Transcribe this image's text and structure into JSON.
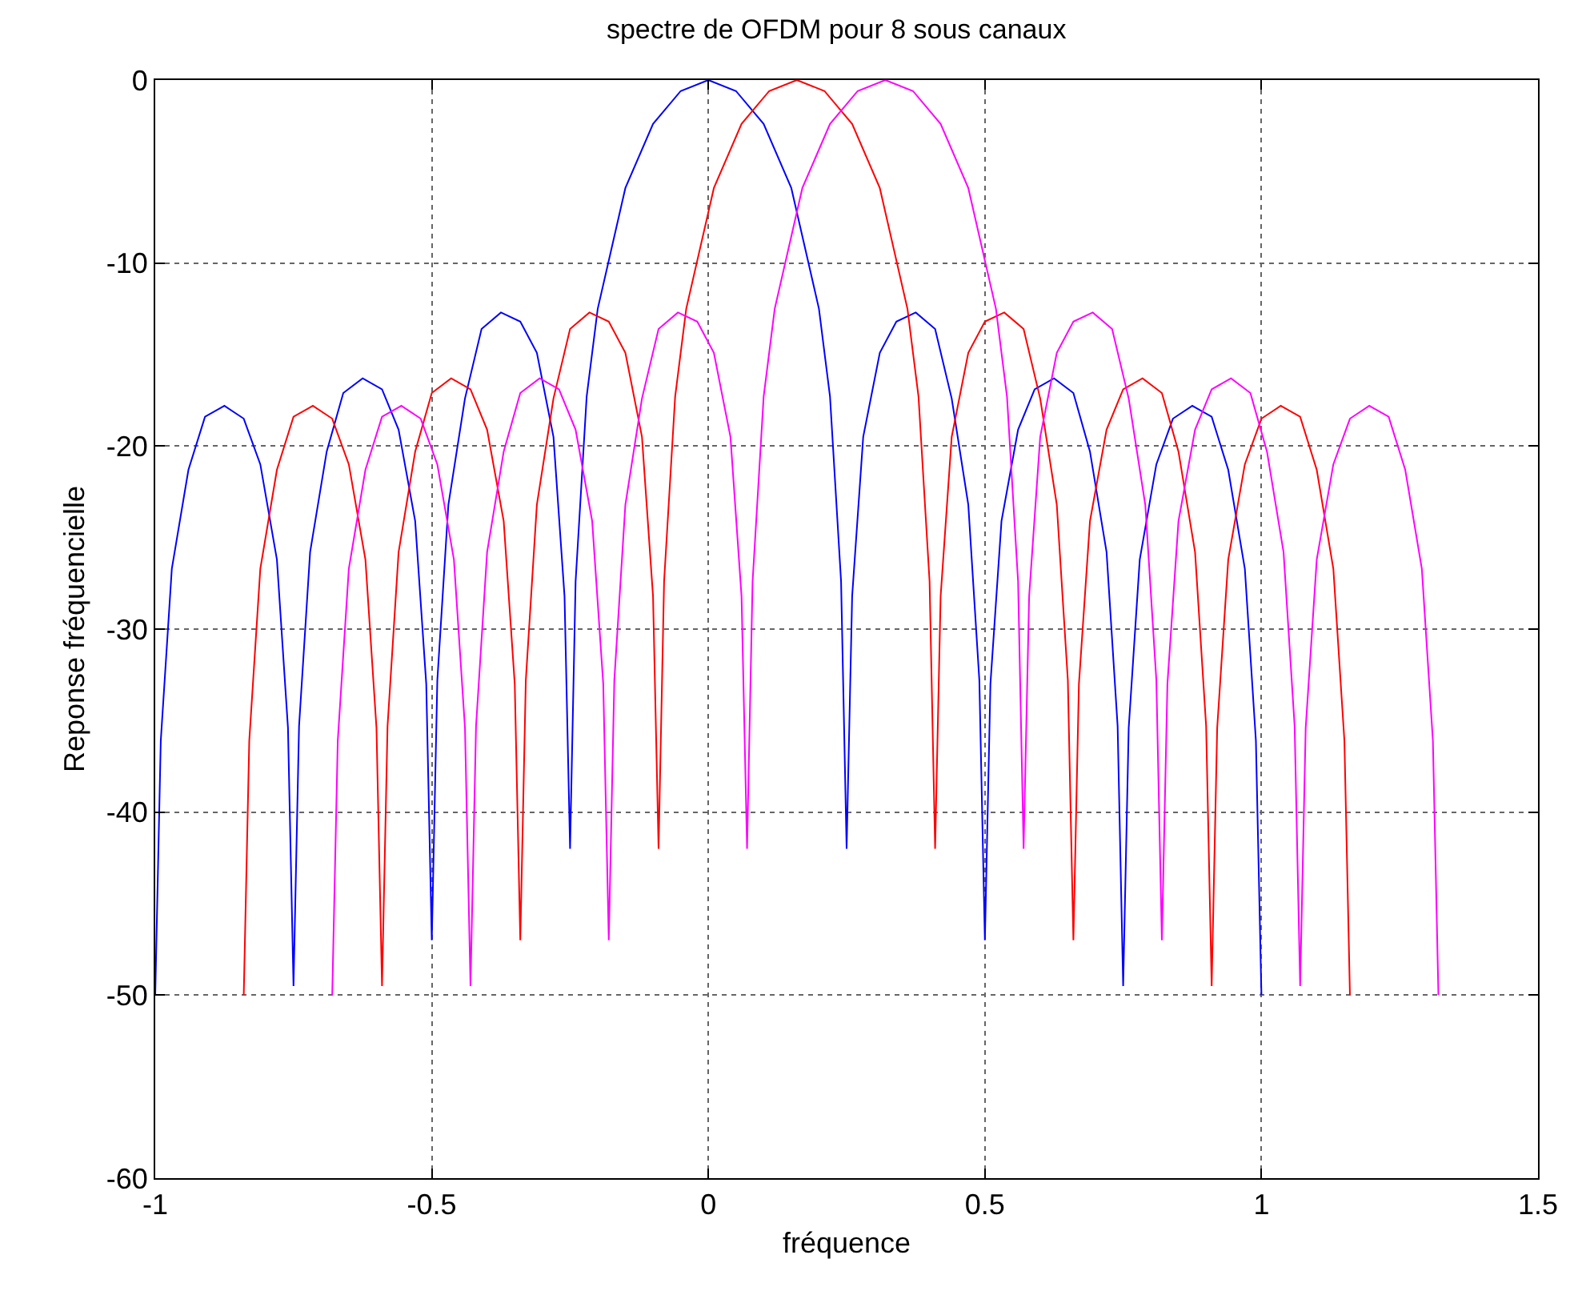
{
  "chart_data": {
    "type": "line",
    "title": "spectre de OFDM pour 8 sous canaux",
    "xlabel": "fréquence",
    "ylabel": "Reponse fréquencielle",
    "xlim": [
      -1,
      1.5
    ],
    "xticks": [
      -1,
      -0.5,
      0,
      0.5,
      1,
      1.5
    ],
    "ylim": [
      -60,
      0
    ],
    "yticks": [
      -60,
      -50,
      -40,
      -30,
      -20,
      -10,
      0
    ],
    "grid": true,
    "marker": "none",
    "line_style": "solid",
    "series": [
      {
        "color": "#0000ff",
        "x": [
          -1,
          -0.99,
          -0.97,
          -0.94,
          -0.91,
          -0.875,
          -0.84,
          -0.81,
          -0.78,
          -0.76,
          -0.75,
          -0.74,
          -0.72,
          -0.69,
          -0.66,
          -0.625,
          -0.59,
          -0.56,
          -0.53,
          -0.51,
          -0.5,
          -0.49,
          -0.47,
          -0.44,
          -0.41,
          -0.375,
          -0.34,
          -0.31,
          -0.28,
          -0.26,
          -0.25,
          -0.24,
          -0.22,
          -0.2,
          -0.15,
          -0.1,
          -0.05,
          0,
          0.05,
          0.1,
          0.15,
          0.2,
          0.22,
          0.24,
          0.25,
          0.26,
          0.28,
          0.31,
          0.34,
          0.375,
          0.41,
          0.44,
          0.47,
          0.49,
          0.5,
          0.51,
          0.53,
          0.56,
          0.59,
          0.625,
          0.66,
          0.69,
          0.72,
          0.74,
          0.75,
          0.76,
          0.78,
          0.81,
          0.84,
          0.875,
          0.91,
          0.94,
          0.97,
          0.99,
          1
        ],
        "values": [
          -50,
          -36.1,
          -26.7,
          -21.3,
          -18.4,
          -17.8,
          -18.5,
          -21,
          -26.2,
          -35.4,
          -49.5,
          -35.3,
          -25.8,
          -20.3,
          -17.1,
          -16.3,
          -16.9,
          -19.1,
          -24.1,
          -33,
          -47,
          -32.8,
          -23.2,
          -17.4,
          -13.6,
          -12.7,
          -13.2,
          -14.9,
          -19.5,
          -28.2,
          -42,
          -27.4,
          -17.3,
          -12.5,
          -5.9,
          -2.4,
          -0.6,
          0,
          -0.6,
          -2.4,
          -5.9,
          -12.5,
          -17.3,
          -27.4,
          -42,
          -28.2,
          -19.5,
          -14.9,
          -13.2,
          -12.7,
          -13.6,
          -17.4,
          -23.2,
          -32.8,
          -47,
          -33,
          -24.1,
          -19.1,
          -16.9,
          -16.3,
          -17.1,
          -20.3,
          -25.8,
          -35.3,
          -49.5,
          -35.4,
          -26.2,
          -21,
          -18.5,
          -17.8,
          -18.4,
          -21.3,
          -26.7,
          -36.1,
          -50
        ]
      },
      {
        "color": "#ff0000",
        "x": [
          -0.84,
          -0.83,
          -0.81,
          -0.78,
          -0.75,
          -0.715,
          -0.68,
          -0.65,
          -0.62,
          -0.6,
          -0.59,
          -0.58,
          -0.56,
          -0.53,
          -0.5,
          -0.465,
          -0.43,
          -0.4,
          -0.37,
          -0.35,
          -0.34,
          -0.33,
          -0.31,
          -0.28,
          -0.25,
          -0.215,
          -0.18,
          -0.15,
          -0.12,
          -0.1,
          -0.09,
          -0.08,
          -0.06,
          -0.04,
          0.01,
          0.06,
          0.11,
          0.16,
          0.21,
          0.26,
          0.31,
          0.36,
          0.38,
          0.4,
          0.41,
          0.42,
          0.44,
          0.47,
          0.5,
          0.535,
          0.57,
          0.6,
          0.63,
          0.65,
          0.66,
          0.67,
          0.69,
          0.72,
          0.75,
          0.785,
          0.82,
          0.85,
          0.88,
          0.9,
          0.91,
          0.92,
          0.94,
          0.97,
          1,
          1.035,
          1.07,
          1.1,
          1.13,
          1.15,
          1.16
        ],
        "values": [
          -50,
          -36.1,
          -26.7,
          -21.3,
          -18.4,
          -17.8,
          -18.5,
          -21,
          -26.2,
          -35.4,
          -49.5,
          -35.3,
          -25.8,
          -20.3,
          -17.1,
          -16.3,
          -16.9,
          -19.1,
          -24.1,
          -33,
          -47,
          -32.8,
          -23.2,
          -17.4,
          -13.6,
          -12.7,
          -13.2,
          -14.9,
          -19.5,
          -28.2,
          -42,
          -27.4,
          -17.3,
          -12.5,
          -5.9,
          -2.4,
          -0.6,
          0,
          -0.6,
          -2.4,
          -5.9,
          -12.5,
          -17.3,
          -27.4,
          -42,
          -28.2,
          -19.5,
          -14.9,
          -13.2,
          -12.7,
          -13.6,
          -17.4,
          -23.2,
          -32.8,
          -47,
          -33,
          -24.1,
          -19.1,
          -16.9,
          -16.3,
          -17.1,
          -20.3,
          -25.8,
          -35.3,
          -49.5,
          -35.4,
          -26.2,
          -21,
          -18.5,
          -17.8,
          -18.4,
          -21.3,
          -26.7,
          -36.1,
          -50
        ]
      },
      {
        "color": "#ff00ff",
        "x": [
          -0.68,
          -0.67,
          -0.65,
          -0.62,
          -0.59,
          -0.555,
          -0.52,
          -0.49,
          -0.46,
          -0.44,
          -0.43,
          -0.42,
          -0.4,
          -0.37,
          -0.34,
          -0.305,
          -0.27,
          -0.24,
          -0.21,
          -0.19,
          -0.18,
          -0.17,
          -0.15,
          -0.12,
          -0.09,
          -0.055,
          -0.02,
          0.01,
          0.04,
          0.06,
          0.07,
          0.08,
          0.1,
          0.12,
          0.17,
          0.22,
          0.27,
          0.32,
          0.37,
          0.42,
          0.47,
          0.52,
          0.54,
          0.56,
          0.57,
          0.58,
          0.6,
          0.63,
          0.66,
          0.695,
          0.73,
          0.76,
          0.79,
          0.81,
          0.82,
          0.83,
          0.85,
          0.88,
          0.91,
          0.945,
          0.98,
          1.01,
          1.04,
          1.06,
          1.07,
          1.08,
          1.1,
          1.13,
          1.16,
          1.195,
          1.23,
          1.26,
          1.29,
          1.31,
          1.32
        ],
        "values": [
          -50,
          -36.1,
          -26.7,
          -21.3,
          -18.4,
          -17.8,
          -18.5,
          -21,
          -26.2,
          -35.4,
          -49.5,
          -35.3,
          -25.8,
          -20.3,
          -17.1,
          -16.3,
          -16.9,
          -19.1,
          -24.1,
          -33,
          -47,
          -32.8,
          -23.2,
          -17.4,
          -13.6,
          -12.7,
          -13.2,
          -14.9,
          -19.5,
          -28.2,
          -42,
          -27.4,
          -17.3,
          -12.5,
          -5.9,
          -2.4,
          -0.6,
          0,
          -0.6,
          -2.4,
          -5.9,
          -12.5,
          -17.3,
          -27.4,
          -42,
          -28.2,
          -19.5,
          -14.9,
          -13.2,
          -12.7,
          -13.6,
          -17.4,
          -23.2,
          -32.8,
          -47,
          -33,
          -24.1,
          -19.1,
          -16.9,
          -16.3,
          -17.1,
          -20.3,
          -25.8,
          -35.3,
          -49.5,
          -35.4,
          -26.2,
          -21,
          -18.5,
          -17.8,
          -18.4,
          -21.3,
          -26.7,
          -36.1,
          -50
        ]
      }
    ]
  }
}
